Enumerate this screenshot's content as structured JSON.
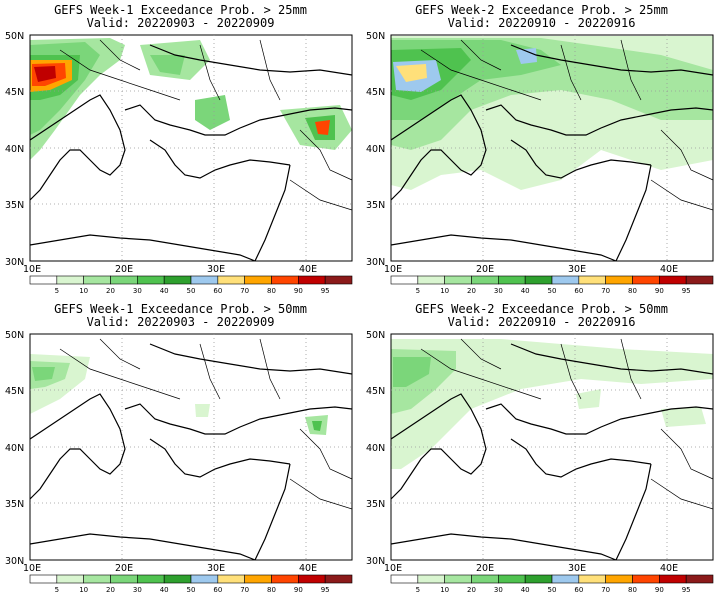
{
  "panels": [
    {
      "title": "GEFS Week-1 Exceedance Prob. > 25mm",
      "valid": "Valid: 20220903 - 20220909"
    },
    {
      "title": "GEFS Week-2 Exceedance Prob. > 25mm",
      "valid": "Valid: 20220910 - 20220916"
    },
    {
      "title": "GEFS Week-1 Exceedance Prob. > 50mm",
      "valid": "Valid: 20220903 - 20220909"
    },
    {
      "title": "GEFS Week-2 Exceedance Prob. > 50mm",
      "valid": "Valid: 20220910 - 20220916"
    }
  ],
  "axes": {
    "lat_labels": [
      "50N",
      "45N",
      "40N",
      "35N",
      "30N"
    ],
    "lon_labels": [
      "10E",
      "20E",
      "30E",
      "40E"
    ]
  },
  "colorbar": {
    "ticks": [
      "5",
      "10",
      "20",
      "30",
      "40",
      "50",
      "60",
      "70",
      "80",
      "90",
      "95"
    ],
    "colors": [
      "#ffffff",
      "#d9f5d0",
      "#a6e6a0",
      "#7bd67a",
      "#4fc24f",
      "#2ea02e",
      "#9ec9ee",
      "#ffe07a",
      "#ffa500",
      "#ff4500",
      "#c00000",
      "#8b1a1a"
    ]
  }
}
